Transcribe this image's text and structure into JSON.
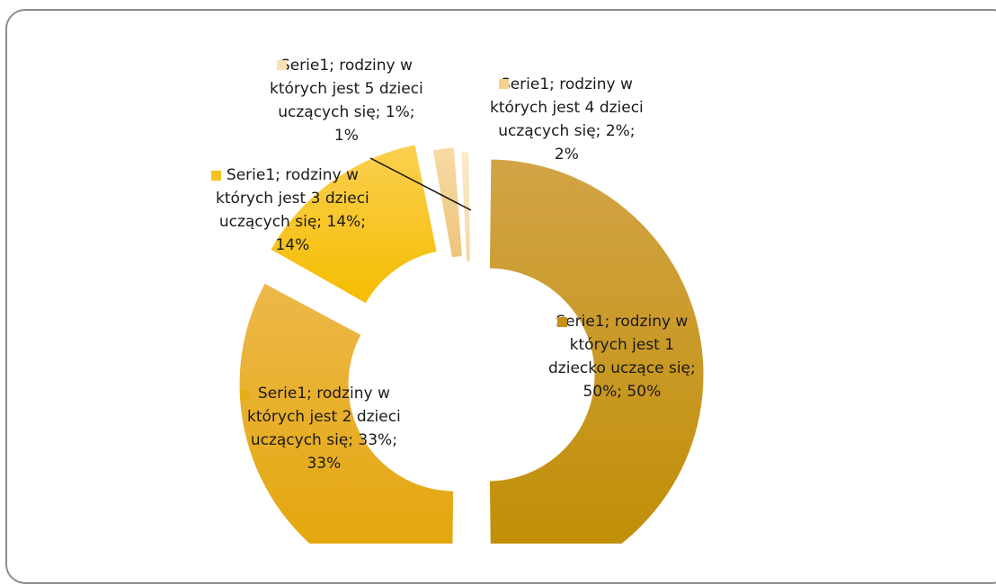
{
  "chart_data": {
    "type": "pie",
    "style": "doughnut-exploded",
    "series": [
      {
        "name": "Serie1",
        "slices": [
          {
            "category": "rodziny w których jest 1 dziecko uczące się",
            "value": 50,
            "color": "#C69214",
            "label_lines": [
              "Serie1; rodziny w",
              "których jest 1",
              "dziecko uczące się;",
              "50%; 50%"
            ]
          },
          {
            "category": "rodziny w których jest 2 dzieci uczących się",
            "value": 33,
            "color": "#E8AE1A",
            "label_lines": [
              "Serie1; rodziny w",
              "których jest 2 dzieci",
              "uczących się; 33%;",
              "33%"
            ]
          },
          {
            "category": "rodziny w których jest 3 dzieci uczących się",
            "value": 14,
            "color": "#F7C21A",
            "label_lines": [
              "Serie1; rodziny w",
              "których jest 3 dzieci",
              "uczących się; 14%;",
              "14%"
            ]
          },
          {
            "category": "rodziny w których jest 4 dzieci uczących się",
            "value": 2,
            "color": "#F4D190",
            "label_lines": [
              "Serie1; rodziny w",
              "których jest 4 dzieci",
              "uczących się; 2%;",
              "2%"
            ]
          },
          {
            "category": "rodziny w których jest 5 dzieci uczących się",
            "value": 1,
            "color": "#F8E2B8",
            "label_lines": [
              "Serie1; rodziny w",
              "których jest 5 dzieci",
              "uczących się; 1%;",
              "1%"
            ]
          }
        ]
      }
    ]
  }
}
